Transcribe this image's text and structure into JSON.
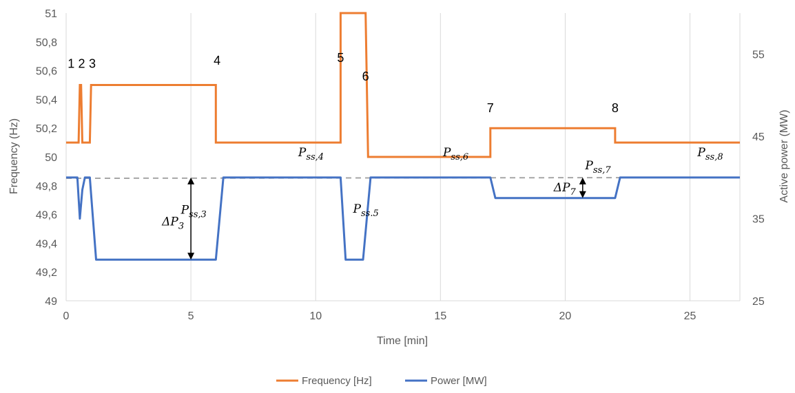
{
  "chart_data": {
    "type": "line",
    "xlabel": "Time [min]",
    "ylabel_left": "Frequency (Hz)",
    "ylabel_right": "Active power (MW)",
    "xlim": [
      0,
      27
    ],
    "ylim_left": [
      49,
      51
    ],
    "ylim_right": [
      25,
      60
    ],
    "x_ticks": [
      "0",
      "5",
      "10",
      "15",
      "20",
      "25"
    ],
    "y_ticks_left": [
      "49",
      "49,2",
      "49,4",
      "49,6",
      "49,8",
      "50",
      "50,2",
      "50,4",
      "50,6",
      "50,8",
      "51"
    ],
    "y_ticks_right": [
      "25",
      "35",
      "45",
      "55"
    ],
    "grid": "vertical",
    "legend_position": "bottom",
    "colors": {
      "frequency": "#ED7D31",
      "power": "#4472C4",
      "reference": "#A6A6A6"
    },
    "series": [
      {
        "name": "Frequency [Hz]",
        "axis": "left",
        "x": [
          0,
          0.5,
          0.55,
          0.6,
          0.65,
          0.95,
          1.0,
          6.0,
          6.0,
          11.0,
          11.0,
          12.0,
          12.1,
          17.0,
          17.0,
          22.0,
          22.0,
          27.0
        ],
        "y": [
          50.1,
          50.1,
          50.5,
          50.5,
          50.1,
          50.1,
          50.5,
          50.5,
          50.1,
          50.1,
          51.0,
          51.0,
          50.0,
          50.0,
          50.2,
          50.2,
          50.1,
          50.1
        ]
      },
      {
        "name": "Power [MW]",
        "axis": "right",
        "x": [
          0,
          0.45,
          0.55,
          0.65,
          0.75,
          0.8,
          0.95,
          1.0,
          1.2,
          6.0,
          6.3,
          11.0,
          11.2,
          11.9,
          12.2,
          17.0,
          17.2,
          22.0,
          22.2,
          27.0
        ],
        "y": [
          40.0,
          40.0,
          35.0,
          38.5,
          40.0,
          40.0,
          40.0,
          38.0,
          30.0,
          30.0,
          40.0,
          40.0,
          30.0,
          30.0,
          40.0,
          40.0,
          37.5,
          37.5,
          40.0,
          40.0
        ]
      }
    ],
    "reference_line": {
      "x": [
        0,
        27
      ],
      "y": [
        39.9,
        40.0
      ]
    },
    "annotations": {
      "points": [
        {
          "label": "1",
          "x": 0.2,
          "y": 50.62
        },
        {
          "label": "2",
          "x": 0.62,
          "y": 50.62
        },
        {
          "label": "3",
          "x": 1.05,
          "y": 50.62
        },
        {
          "label": "4",
          "x": 6.05,
          "y": 50.64
        },
        {
          "label": "5",
          "x": 11.0,
          "y": 50.66
        },
        {
          "label": "6",
          "x": 12.0,
          "y": 50.53
        },
        {
          "label": "7",
          "x": 17.0,
          "y": 50.31
        },
        {
          "label": "8",
          "x": 22.0,
          "y": 50.31
        }
      ],
      "labels": [
        {
          "name": "p-ss-3",
          "main": "P",
          "sub": "ss,3",
          "x": 4.6,
          "y": 35.6
        },
        {
          "name": "p-ss-4",
          "main": "P",
          "sub": "ss,4",
          "x": 9.3,
          "y": 42.6
        },
        {
          "name": "p-ss-5",
          "main": "P",
          "sub": "ss.5",
          "x": 11.5,
          "y": 35.7
        },
        {
          "name": "p-ss-6",
          "main": "P",
          "sub": "ss,6",
          "x": 15.1,
          "y": 42.6
        },
        {
          "name": "p-ss-7",
          "main": "P",
          "sub": "ss,7",
          "x": 20.8,
          "y": 41.0
        },
        {
          "name": "p-ss-8",
          "main": "P",
          "sub": "ss,8",
          "x": 25.3,
          "y": 42.6
        }
      ],
      "deltas": [
        {
          "name": "delta-p3",
          "text": "ΔP",
          "sub": "3",
          "arrow_x": 5.0,
          "y_from": 40.0,
          "y_to": 30.0
        },
        {
          "name": "delta-p7",
          "text": "ΔP",
          "sub": "7",
          "arrow_x": 20.7,
          "y_from": 40.0,
          "y_to": 37.5
        }
      ]
    }
  },
  "legend": [
    {
      "label": "Frequency [Hz]",
      "color": "#ED7D31"
    },
    {
      "label": "Power [MW]",
      "color": "#4472C4"
    }
  ]
}
